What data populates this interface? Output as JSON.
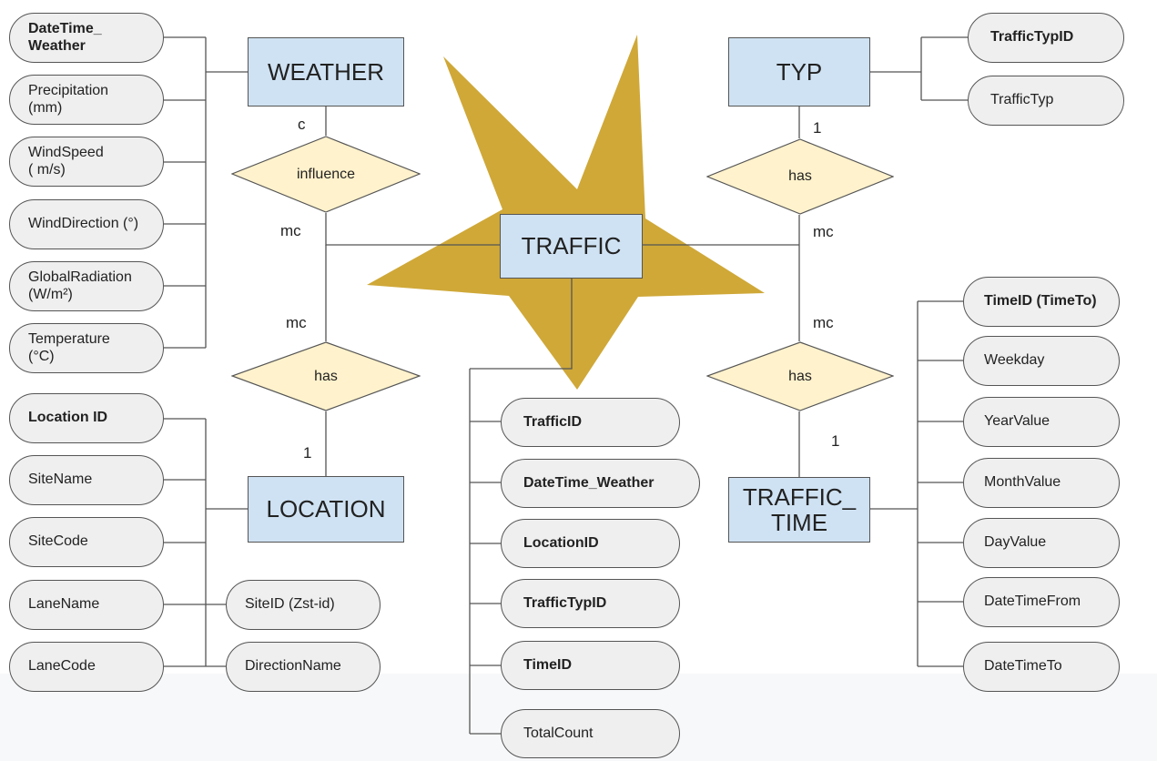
{
  "entities": {
    "weather": "WEATHER",
    "typ": "TYP",
    "traffic": "TRAFFIC",
    "location": "LOCATION",
    "traffic_time": "TRAFFIC_\nTIME"
  },
  "relationships": {
    "influence": "influence",
    "has_location": "has",
    "has_typ": "has",
    "has_time": "has"
  },
  "cardinalities": {
    "weather_influence": "c",
    "influence_traffic": "mc",
    "traffic_has_location": "mc",
    "has_location_one": "1",
    "typ_has_one": "1",
    "has_typ_traffic": "mc",
    "traffic_has_time": "mc",
    "has_time_one": "1"
  },
  "weather_attrs": [
    {
      "label": "DateTime_\nWeather",
      "key": true
    },
    {
      "label": "Precipitation\n(mm)",
      "key": false
    },
    {
      "label": "WindSpeed\n( m/s)",
      "key": false
    },
    {
      "label": "WindDirection (°)",
      "key": false
    },
    {
      "label": "GlobalRadiation\n(W/m²)",
      "key": false
    },
    {
      "label": "Temperature\n(°C)",
      "key": false
    }
  ],
  "location_attrs": [
    {
      "label": "Location ID",
      "key": true
    },
    {
      "label": "SiteName",
      "key": false
    },
    {
      "label": "SiteCode",
      "key": false
    },
    {
      "label": "LaneName",
      "key": false
    },
    {
      "label": "LaneCode",
      "key": false
    }
  ],
  "location_attrs_right": [
    {
      "label": "SiteID (Zst-id)",
      "key": false
    },
    {
      "label": "DirectionName",
      "key": false
    }
  ],
  "traffic_attrs": [
    {
      "label": "TrafficID",
      "key": true
    },
    {
      "label": "DateTime_Weather",
      "key": true
    },
    {
      "label": "LocationID",
      "key": true
    },
    {
      "label": "TrafficTypID",
      "key": true
    },
    {
      "label": "TimeID",
      "key": true
    },
    {
      "label": "TotalCount",
      "key": false
    }
  ],
  "typ_attrs": [
    {
      "label": "TrafficTypID",
      "key": true
    },
    {
      "label": "TrafficTyp",
      "key": false
    }
  ],
  "time_attrs": [
    {
      "label": "TimeID (TimeTo)",
      "key": true
    },
    {
      "label": "Weekday",
      "key": false
    },
    {
      "label": "YearValue",
      "key": false
    },
    {
      "label": "MonthValue",
      "key": false
    },
    {
      "label": "DayValue",
      "key": false
    },
    {
      "label": "DateTimeFrom",
      "key": false
    },
    {
      "label": "DateTimeTo",
      "key": false
    }
  ],
  "colors": {
    "entity_fill": "#cfe2f3",
    "relationship_fill": "#fff2cc",
    "attribute_fill": "#efefef",
    "star_fill": "#cfa838",
    "line": "#555555"
  }
}
